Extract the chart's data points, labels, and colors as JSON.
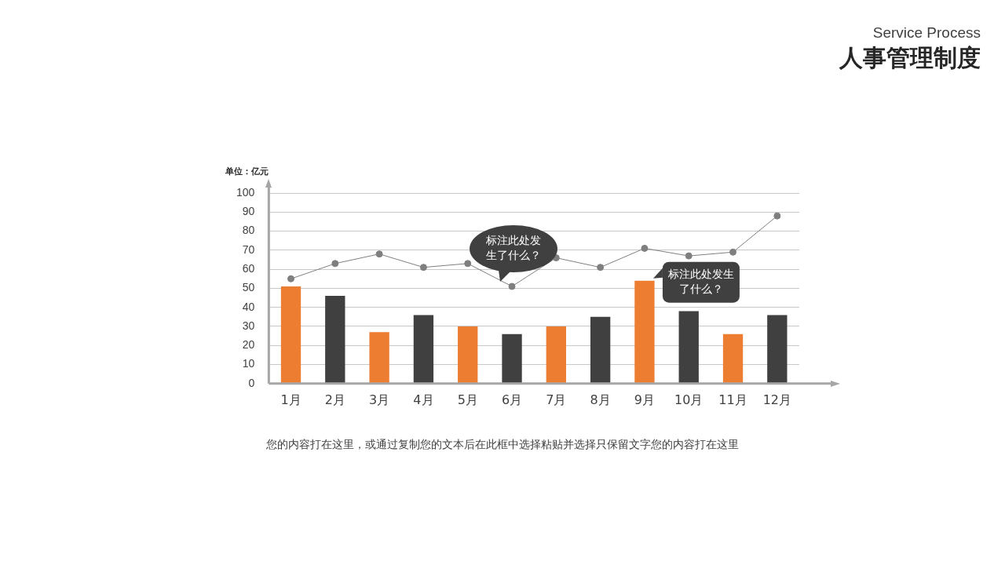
{
  "chart_data": {
    "type": "bar",
    "title": "人事管理制度",
    "subtitle": "Service Process",
    "ylabel": "单位：亿元",
    "categories": [
      "1月",
      "2月",
      "3月",
      "4月",
      "5月",
      "6月",
      "7月",
      "8月",
      "9月",
      "10月",
      "11月",
      "12月"
    ],
    "series": [
      {
        "values": [
          51,
          46,
          27,
          36,
          30,
          26,
          30,
          35,
          54,
          38,
          26,
          36
        ],
        "colors": [
          "#ed7d31",
          "#404040",
          "#ed7d31",
          "#404040",
          "#ed7d31",
          "#404040",
          "#ed7d31",
          "#404040",
          "#ed7d31",
          "#404040",
          "#ed7d31",
          "#404040"
        ]
      },
      {
        "type": "line",
        "color": "#7f7f7f",
        "marker": "circle",
        "line_style": "solid",
        "values": [
          55,
          63,
          68,
          61,
          63,
          51,
          66,
          61,
          71,
          67,
          69,
          88
        ]
      }
    ],
    "ylim": [
      0,
      100
    ],
    "yticks": [
      0,
      10,
      20,
      30,
      40,
      50,
      60,
      70,
      80,
      90,
      100
    ],
    "grid": "y",
    "legend": false,
    "annotations": [
      {
        "text": "标注此处发生了什么？",
        "x": "6月",
        "y": 51
      },
      {
        "text": "标注此处发生了什么？",
        "x": "9月",
        "y": 54
      },
      "您的内容打在这里，或通过复制您的文本后在此框中选择粘贴并选择只保留文字您的内容打在这里"
    ]
  }
}
